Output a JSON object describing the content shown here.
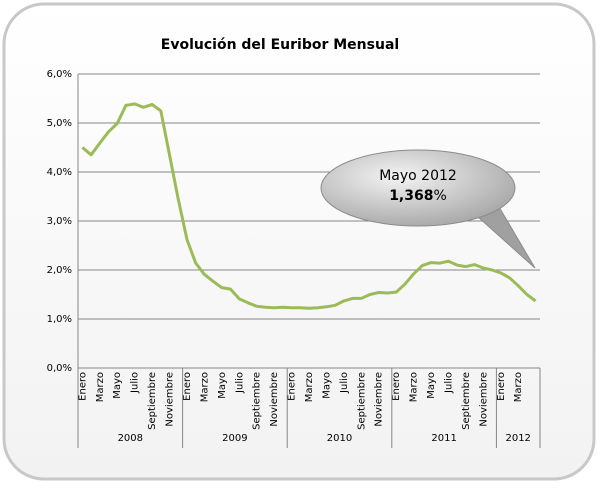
{
  "chart_data": {
    "type": "line",
    "title": "Evolución del Euribor Mensual",
    "categories": [
      "Enero",
      null,
      "Marzo",
      null,
      "Mayo",
      null,
      "Julio",
      null,
      "Septiembre",
      null,
      "Noviembre",
      null,
      "Enero",
      null,
      "Marzo",
      null,
      "Mayo",
      null,
      "Julio",
      null,
      "Septiembre",
      null,
      "Noviembre",
      null,
      "Enero",
      null,
      "Marzo",
      null,
      "Mayo",
      null,
      "Julio",
      null,
      "Septiembre",
      null,
      "Noviembre",
      null,
      "Enero",
      null,
      "Marzo",
      null,
      "Mayo",
      null,
      "Julio",
      null,
      "Septiembre",
      null,
      "Noviembre",
      null,
      "Enero",
      null,
      "Marzo",
      null,
      null
    ],
    "groups": [
      {
        "label": "2008",
        "count": 12
      },
      {
        "label": "2009",
        "count": 12
      },
      {
        "label": "2010",
        "count": 12
      },
      {
        "label": "2011",
        "count": 12
      },
      {
        "label": "2012",
        "count": 5
      }
    ],
    "series": [
      {
        "name": "Euribor",
        "color": "#9bbb59",
        "values": [
          4.5,
          4.35,
          4.59,
          4.82,
          4.99,
          5.36,
          5.39,
          5.32,
          5.38,
          5.25,
          4.35,
          3.45,
          2.62,
          2.14,
          1.91,
          1.77,
          1.64,
          1.61,
          1.41,
          1.33,
          1.26,
          1.24,
          1.23,
          1.24,
          1.23,
          1.23,
          1.22,
          1.23,
          1.25,
          1.28,
          1.37,
          1.42,
          1.42,
          1.5,
          1.54,
          1.53,
          1.55,
          1.71,
          1.92,
          2.09,
          2.15,
          2.14,
          2.18,
          2.1,
          2.07,
          2.11,
          2.04,
          2.0,
          1.94,
          1.84,
          1.68,
          1.5,
          1.368
        ]
      }
    ],
    "ylim": [
      0,
      6
    ],
    "yticks": [
      {
        "value": 0,
        "label": "0,0%"
      },
      {
        "value": 1,
        "label": "1,0%"
      },
      {
        "value": 2,
        "label": "2,0%"
      },
      {
        "value": 3,
        "label": "3,0%"
      },
      {
        "value": 4,
        "label": "4,0%"
      },
      {
        "value": 5,
        "label": "5,0%"
      },
      {
        "value": 6,
        "label": "6,0%"
      }
    ],
    "grid": true,
    "annotation": {
      "title": "Mayo 2012",
      "value": "1,368",
      "suffix": "%"
    }
  }
}
